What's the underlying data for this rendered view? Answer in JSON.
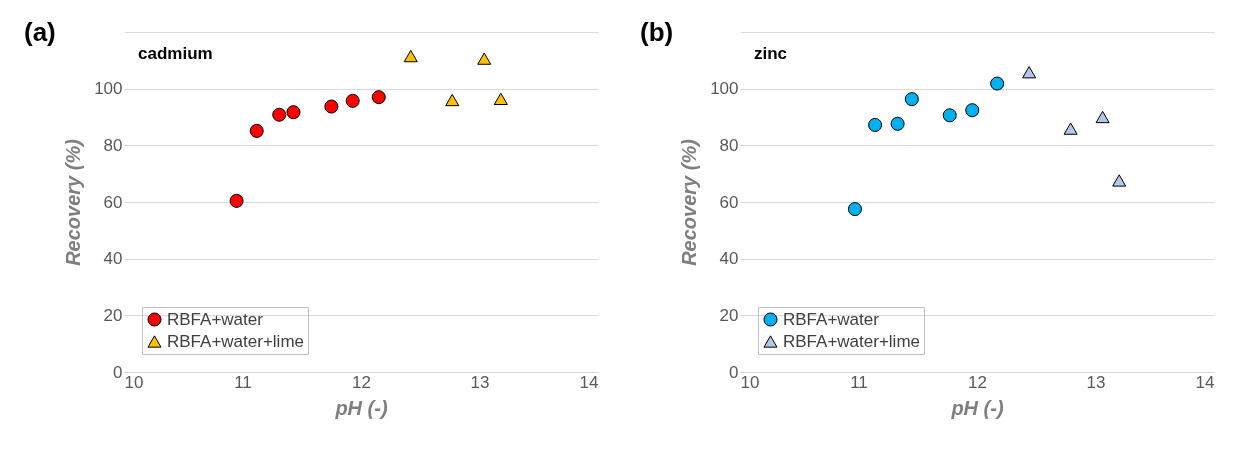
{
  "chart_data": [
    {
      "type": "scatter",
      "title": "(a)",
      "annotations": [
        "cadmium"
      ],
      "xlabel": "pH (-)",
      "ylabel": "Recovery (%)",
      "xlim": [
        10,
        14
      ],
      "xticks": [
        10,
        11,
        12,
        13,
        14
      ],
      "ylim": [
        0,
        120
      ],
      "yticks": [
        0,
        20,
        40,
        60,
        80,
        100,
        {
          "value": 120,
          "label": null
        }
      ],
      "grid": "y",
      "legend": "bottom left",
      "series": [
        {
          "name": "RBFA+water",
          "color": "#ff0000",
          "marker": "circle",
          "x": [
            10.95,
            11.12,
            11.31,
            11.43,
            11.75,
            11.93,
            12.15
          ],
          "values": [
            60.4,
            85.1,
            90.8,
            91.7,
            93.7,
            95.7,
            97.0
          ]
        },
        {
          "name": "RBFA+water+lime",
          "color": "#ffc000",
          "marker": "triangle",
          "x": [
            12.42,
            12.77,
            13.04,
            13.18
          ],
          "values": [
            111.5,
            96.0,
            110.6,
            96.4
          ]
        }
      ]
    },
    {
      "type": "scatter",
      "title": "(b)",
      "annotations": [
        "zinc"
      ],
      "xlabel": "pH (-)",
      "ylabel": "Recovery (%)",
      "xlim": [
        10,
        14
      ],
      "xticks": [
        10,
        11,
        12,
        13,
        14
      ],
      "ylim": [
        0,
        120
      ],
      "yticks": [
        0,
        20,
        40,
        60,
        80,
        100,
        {
          "value": 120,
          "label": null
        }
      ],
      "grid": "y",
      "legend": "bottom left",
      "series": [
        {
          "name": "RBFA+water",
          "color": "#00b0f0",
          "marker": "circle",
          "x": [
            10.97,
            11.14,
            11.33,
            11.45,
            11.77,
            11.96,
            12.17
          ],
          "values": [
            57.5,
            87.2,
            87.6,
            96.3,
            90.6,
            92.4,
            101.8
          ]
        },
        {
          "name": "RBFA+water+lime",
          "color": "#b4c7e7",
          "marker": "triangle",
          "x": [
            12.44,
            12.79,
            13.06,
            13.2
          ],
          "values": [
            105.8,
            85.9,
            90.0,
            67.6
          ]
        }
      ]
    }
  ]
}
